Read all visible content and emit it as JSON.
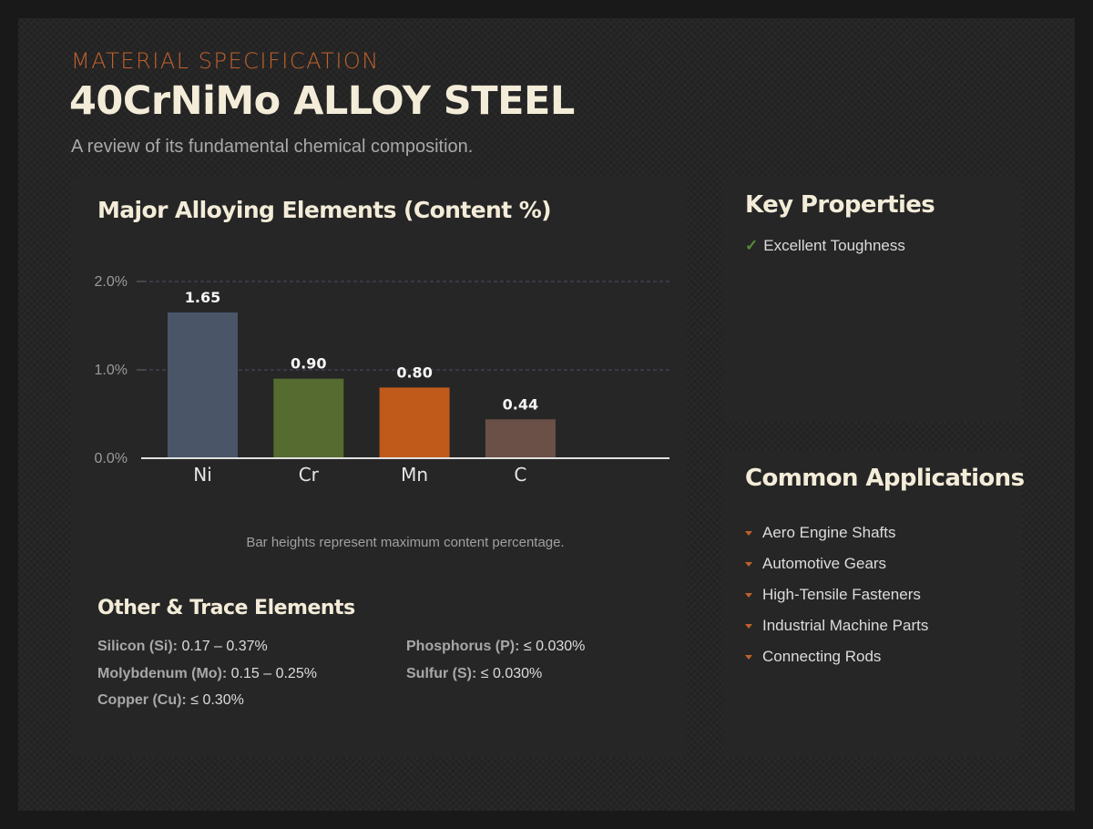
{
  "header": {
    "eyebrow": "MATERIAL SPECIFICATION",
    "title": "40CrNiMo ALLOY STEEL",
    "subtitle": "A review of its fundamental chemical composition."
  },
  "chart_data": {
    "type": "bar",
    "title": "Major Alloying Elements (Content %)",
    "categories": [
      "Ni",
      "Cr",
      "Mn",
      "C"
    ],
    "values": [
      1.65,
      0.9,
      0.8,
      0.44
    ],
    "value_labels": [
      "1.65",
      "0.90",
      "0.80",
      "0.44"
    ],
    "colors": [
      "#4a5568",
      "#556b2f",
      "#c05a1b",
      "#6b5048"
    ],
    "ylim": [
      0,
      2
    ],
    "yticks": [
      {
        "value": 0,
        "label": "0.0%"
      },
      {
        "value": 1,
        "label": "1.0%"
      },
      {
        "value": 2,
        "label": "2.0%"
      }
    ],
    "grid": true,
    "xlabel": "",
    "ylabel": "",
    "note": "Bar heights represent maximum content percentage."
  },
  "key_properties": {
    "title": "Key Properties",
    "items": [
      "Excellent Toughness"
    ]
  },
  "applications": {
    "title": "Common Applications",
    "items": [
      "Aero Engine Shafts",
      "Automotive Gears",
      "High-Tensile Fasteners",
      "Industrial Machine Parts",
      "Connecting Rods"
    ]
  },
  "trace": {
    "title": "Other & Trace Elements",
    "items": [
      {
        "name": "Silicon (Si):",
        "value": "0.17 – 0.37%"
      },
      {
        "name": "Phosphorus (P):",
        "value": "≤ 0.030%"
      },
      {
        "name": "Molybdenum (Mo):",
        "value": "0.15 – 0.25%"
      },
      {
        "name": "Sulfur (S):",
        "value": "≤ 0.030%"
      },
      {
        "name": "Copper (Cu):",
        "value": "≤ 0.30%"
      }
    ]
  },
  "colors": {
    "accent": "#c0612b",
    "check": "#5a8a3a",
    "title_text": "#f3ecd8"
  }
}
